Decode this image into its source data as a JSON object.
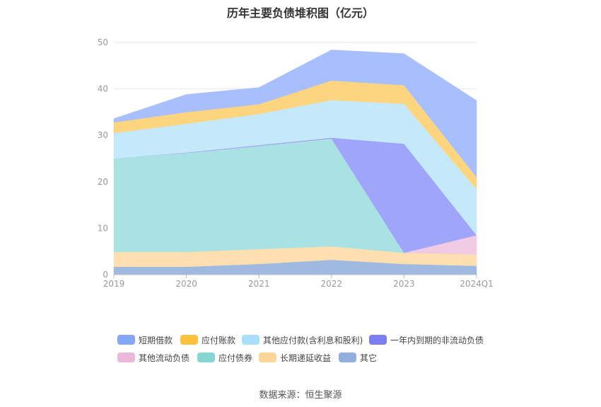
{
  "chart_data": {
    "type": "area",
    "stacked": true,
    "title": "历年主要负债堆积图（亿元）",
    "categories": [
      "2019",
      "2020",
      "2021",
      "2022",
      "2023",
      "2024Q1"
    ],
    "ylim": [
      0,
      50
    ],
    "yticks": [
      0,
      10,
      20,
      30,
      40,
      50
    ],
    "grid": true,
    "legend_position": "bottom",
    "series": [
      {
        "name": "其它",
        "color": "#9fb9e0",
        "values": [
          1.7,
          1.7,
          2.3,
          3.2,
          2.3,
          1.9
        ]
      },
      {
        "name": "长期递延收益",
        "color": "#fddfb0",
        "values": [
          3.2,
          3.2,
          3.2,
          2.9,
          2.4,
          2.5
        ]
      },
      {
        "name": "应付债券",
        "color": "#a8e2e2",
        "values": [
          20.1,
          21.3,
          22.2,
          23.2,
          0,
          0
        ]
      },
      {
        "name": "其他流动负债",
        "color": "#f0cbe3",
        "values": [
          0,
          0,
          0,
          0,
          0,
          4.1
        ]
      },
      {
        "name": "一年内到期的非流动负债",
        "color": "#9fa5f8",
        "values": [
          0,
          0.1,
          0.2,
          0.2,
          23.5,
          0
        ]
      },
      {
        "name": "其他应付款(含利息和股利)",
        "color": "#c4e9fb",
        "values": [
          5.5,
          6.2,
          6.7,
          8.1,
          8.6,
          9.9
        ]
      },
      {
        "name": "应付账款",
        "color": "#fed57f",
        "values": [
          2.3,
          2.5,
          2.1,
          4.2,
          4.0,
          2.6
        ]
      },
      {
        "name": "短期借款",
        "color": "#a8bffd",
        "values": [
          0.8,
          3.8,
          3.6,
          6.6,
          6.8,
          16.5
        ]
      }
    ]
  },
  "legend": {
    "items": [
      {
        "label": "短期借款",
        "color": "#87a6f7"
      },
      {
        "label": "应付账款",
        "color": "#fdc23e"
      },
      {
        "label": "其他应付款(含利息和股利)",
        "color": "#a8dffa"
      },
      {
        "label": "一年内到期的非流动负债",
        "color": "#7b7ff2"
      },
      {
        "label": "其他流动负债",
        "color": "#ebb8da"
      },
      {
        "label": "应付债券",
        "color": "#86d6d4"
      },
      {
        "label": "长期递延收益",
        "color": "#fcd598"
      },
      {
        "label": "其它",
        "color": "#93afde"
      }
    ]
  },
  "source": "数据来源：恒生聚源"
}
